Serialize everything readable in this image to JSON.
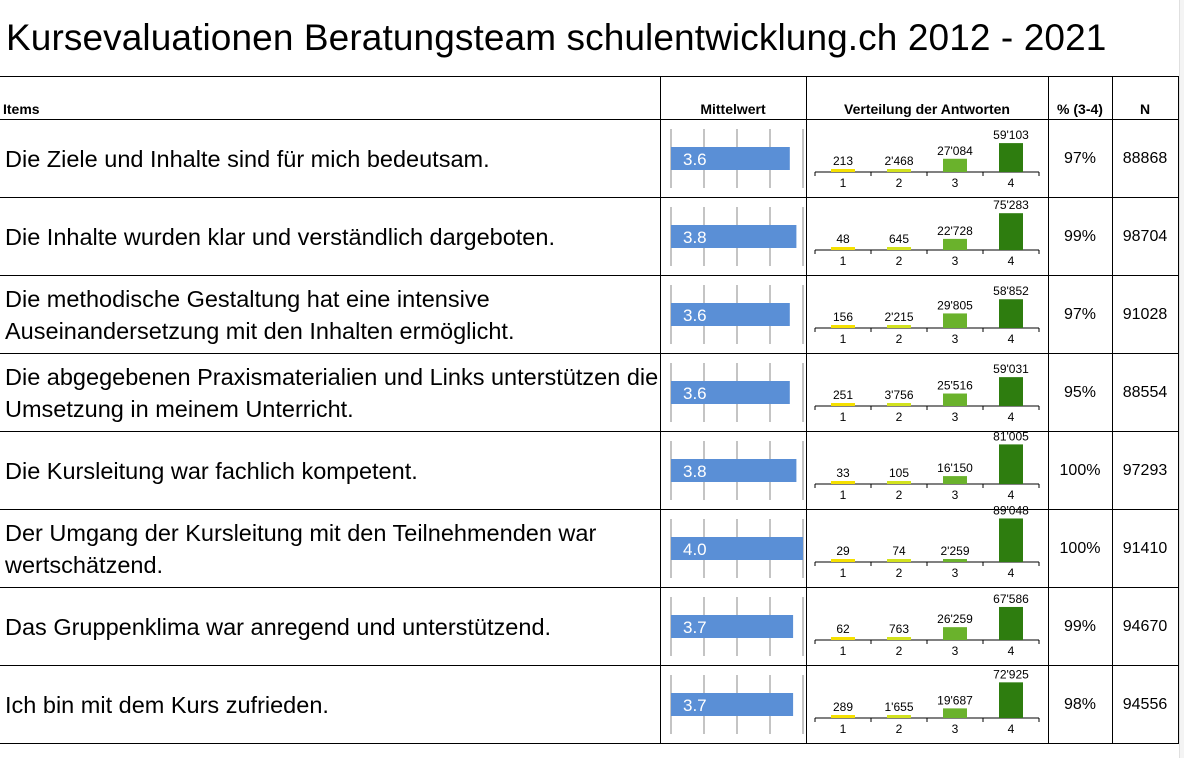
{
  "title": "Kursevaluationen Beratungsteam schulentwicklung.ch 2012 - 2021",
  "headers": {
    "items": "Items",
    "mean": "Mittelwert",
    "distribution": "Verteilung der Antworten",
    "pct": "% (3-4)",
    "n": "N"
  },
  "colors": {
    "mean_bar": "#5a8fd6",
    "dist": [
      "#f5e000",
      "#d2e21e",
      "#6ab22c",
      "#2e7d0f"
    ]
  },
  "rows": [
    {
      "item": "Die Ziele und Inhalte sind für mich bedeutsam.",
      "mean": "3.6",
      "dist_labels": [
        "213",
        "2'468",
        "27'084",
        "59'103"
      ],
      "pct": "97%",
      "n": "88868"
    },
    {
      "item": "Die Inhalte wurden klar und verständlich dargeboten.",
      "mean": "3.8",
      "dist_labels": [
        "48",
        "645",
        "22'728",
        "75'283"
      ],
      "pct": "99%",
      "n": "98704"
    },
    {
      "item": "Die methodische Gestaltung hat eine intensive Auseinandersetzung mit den Inhalten ermöglicht.",
      "mean": "3.6",
      "dist_labels": [
        "156",
        "2'215",
        "29'805",
        "58'852"
      ],
      "pct": "97%",
      "n": "91028"
    },
    {
      "item": "Die abgegebenen Praxismaterialien und Links unterstützen die Umsetzung in meinem Unterricht.",
      "mean": "3.6",
      "dist_labels": [
        "251",
        "3'756",
        "25'516",
        "59'031"
      ],
      "pct": "95%",
      "n": "88554"
    },
    {
      "item": "Die Kursleitung war fachlich kompetent.",
      "mean": "3.8",
      "dist_labels": [
        "33",
        "105",
        "16'150",
        "81'005"
      ],
      "pct": "100%",
      "n": "97293"
    },
    {
      "item": "Der Umgang der Kursleitung mit den Teilnehmenden war wertschätzend.",
      "mean": "4.0",
      "dist_labels": [
        "29",
        "74",
        "2'259",
        "89'048"
      ],
      "pct": "100%",
      "n": "91410"
    },
    {
      "item": "Das Gruppenklima war anregend und unterstützend.",
      "mean": "3.7",
      "dist_labels": [
        "62",
        "763",
        "26'259",
        "67'586"
      ],
      "pct": "99%",
      "n": "94670"
    },
    {
      "item": "Ich bin mit dem Kurs zufrieden.",
      "mean": "3.7",
      "dist_labels": [
        "289",
        "1'655",
        "19'687",
        "72'925"
      ],
      "pct": "98%",
      "n": "94556"
    }
  ],
  "chart_data": [
    {
      "type": "bar",
      "title": "Mittelwert",
      "orientation": "horizontal",
      "xlim": [
        0,
        4
      ],
      "grid": true,
      "categories": [
        "Die Ziele und Inhalte sind für mich bedeutsam.",
        "Die Inhalte wurden klar und verständlich dargeboten.",
        "Die methodische Gestaltung hat eine intensive Auseinandersetzung mit den Inhalten ermöglicht.",
        "Die abgegebenen Praxismaterialien und Links unterstützen die Umsetzung in meinem Unterricht.",
        "Die Kursleitung war fachlich kompetent.",
        "Der Umgang der Kursleitung mit den Teilnehmenden war wertschätzend.",
        "Das Gruppenklima war anregend und unterstützend.",
        "Ich bin mit dem Kurs zufrieden."
      ],
      "values": [
        3.6,
        3.8,
        3.6,
        3.6,
        3.8,
        4.0,
        3.7,
        3.7
      ]
    },
    {
      "type": "bar",
      "title": "Verteilung der Antworten",
      "categories": [
        "1",
        "2",
        "3",
        "4"
      ],
      "series": [
        {
          "name": "Die Ziele und Inhalte sind für mich bedeutsam.",
          "values": [
            213,
            2468,
            27084,
            59103
          ]
        },
        {
          "name": "Die Inhalte wurden klar und verständlich dargeboten.",
          "values": [
            48,
            645,
            22728,
            75283
          ]
        },
        {
          "name": "Die methodische Gestaltung hat eine intensive Auseinandersetzung mit den Inhalten ermöglicht.",
          "values": [
            156,
            2215,
            29805,
            58852
          ]
        },
        {
          "name": "Die abgegebenen Praxismaterialien und Links unterstützen die Umsetzung in meinem Unterricht.",
          "values": [
            251,
            3756,
            25516,
            59031
          ]
        },
        {
          "name": "Die Kursleitung war fachlich kompetent.",
          "values": [
            33,
            105,
            16150,
            81005
          ]
        },
        {
          "name": "Der Umgang der Kursleitung mit den Teilnehmenden war wertschätzend.",
          "values": [
            29,
            74,
            2259,
            89048
          ]
        },
        {
          "name": "Das Gruppenklima war anregend und unterstützend.",
          "values": [
            62,
            763,
            26259,
            67586
          ]
        },
        {
          "name": "Ich bin mit dem Kurs zufrieden.",
          "values": [
            289,
            1655,
            19687,
            72925
          ]
        }
      ],
      "ylim": [
        0,
        90000
      ]
    }
  ]
}
